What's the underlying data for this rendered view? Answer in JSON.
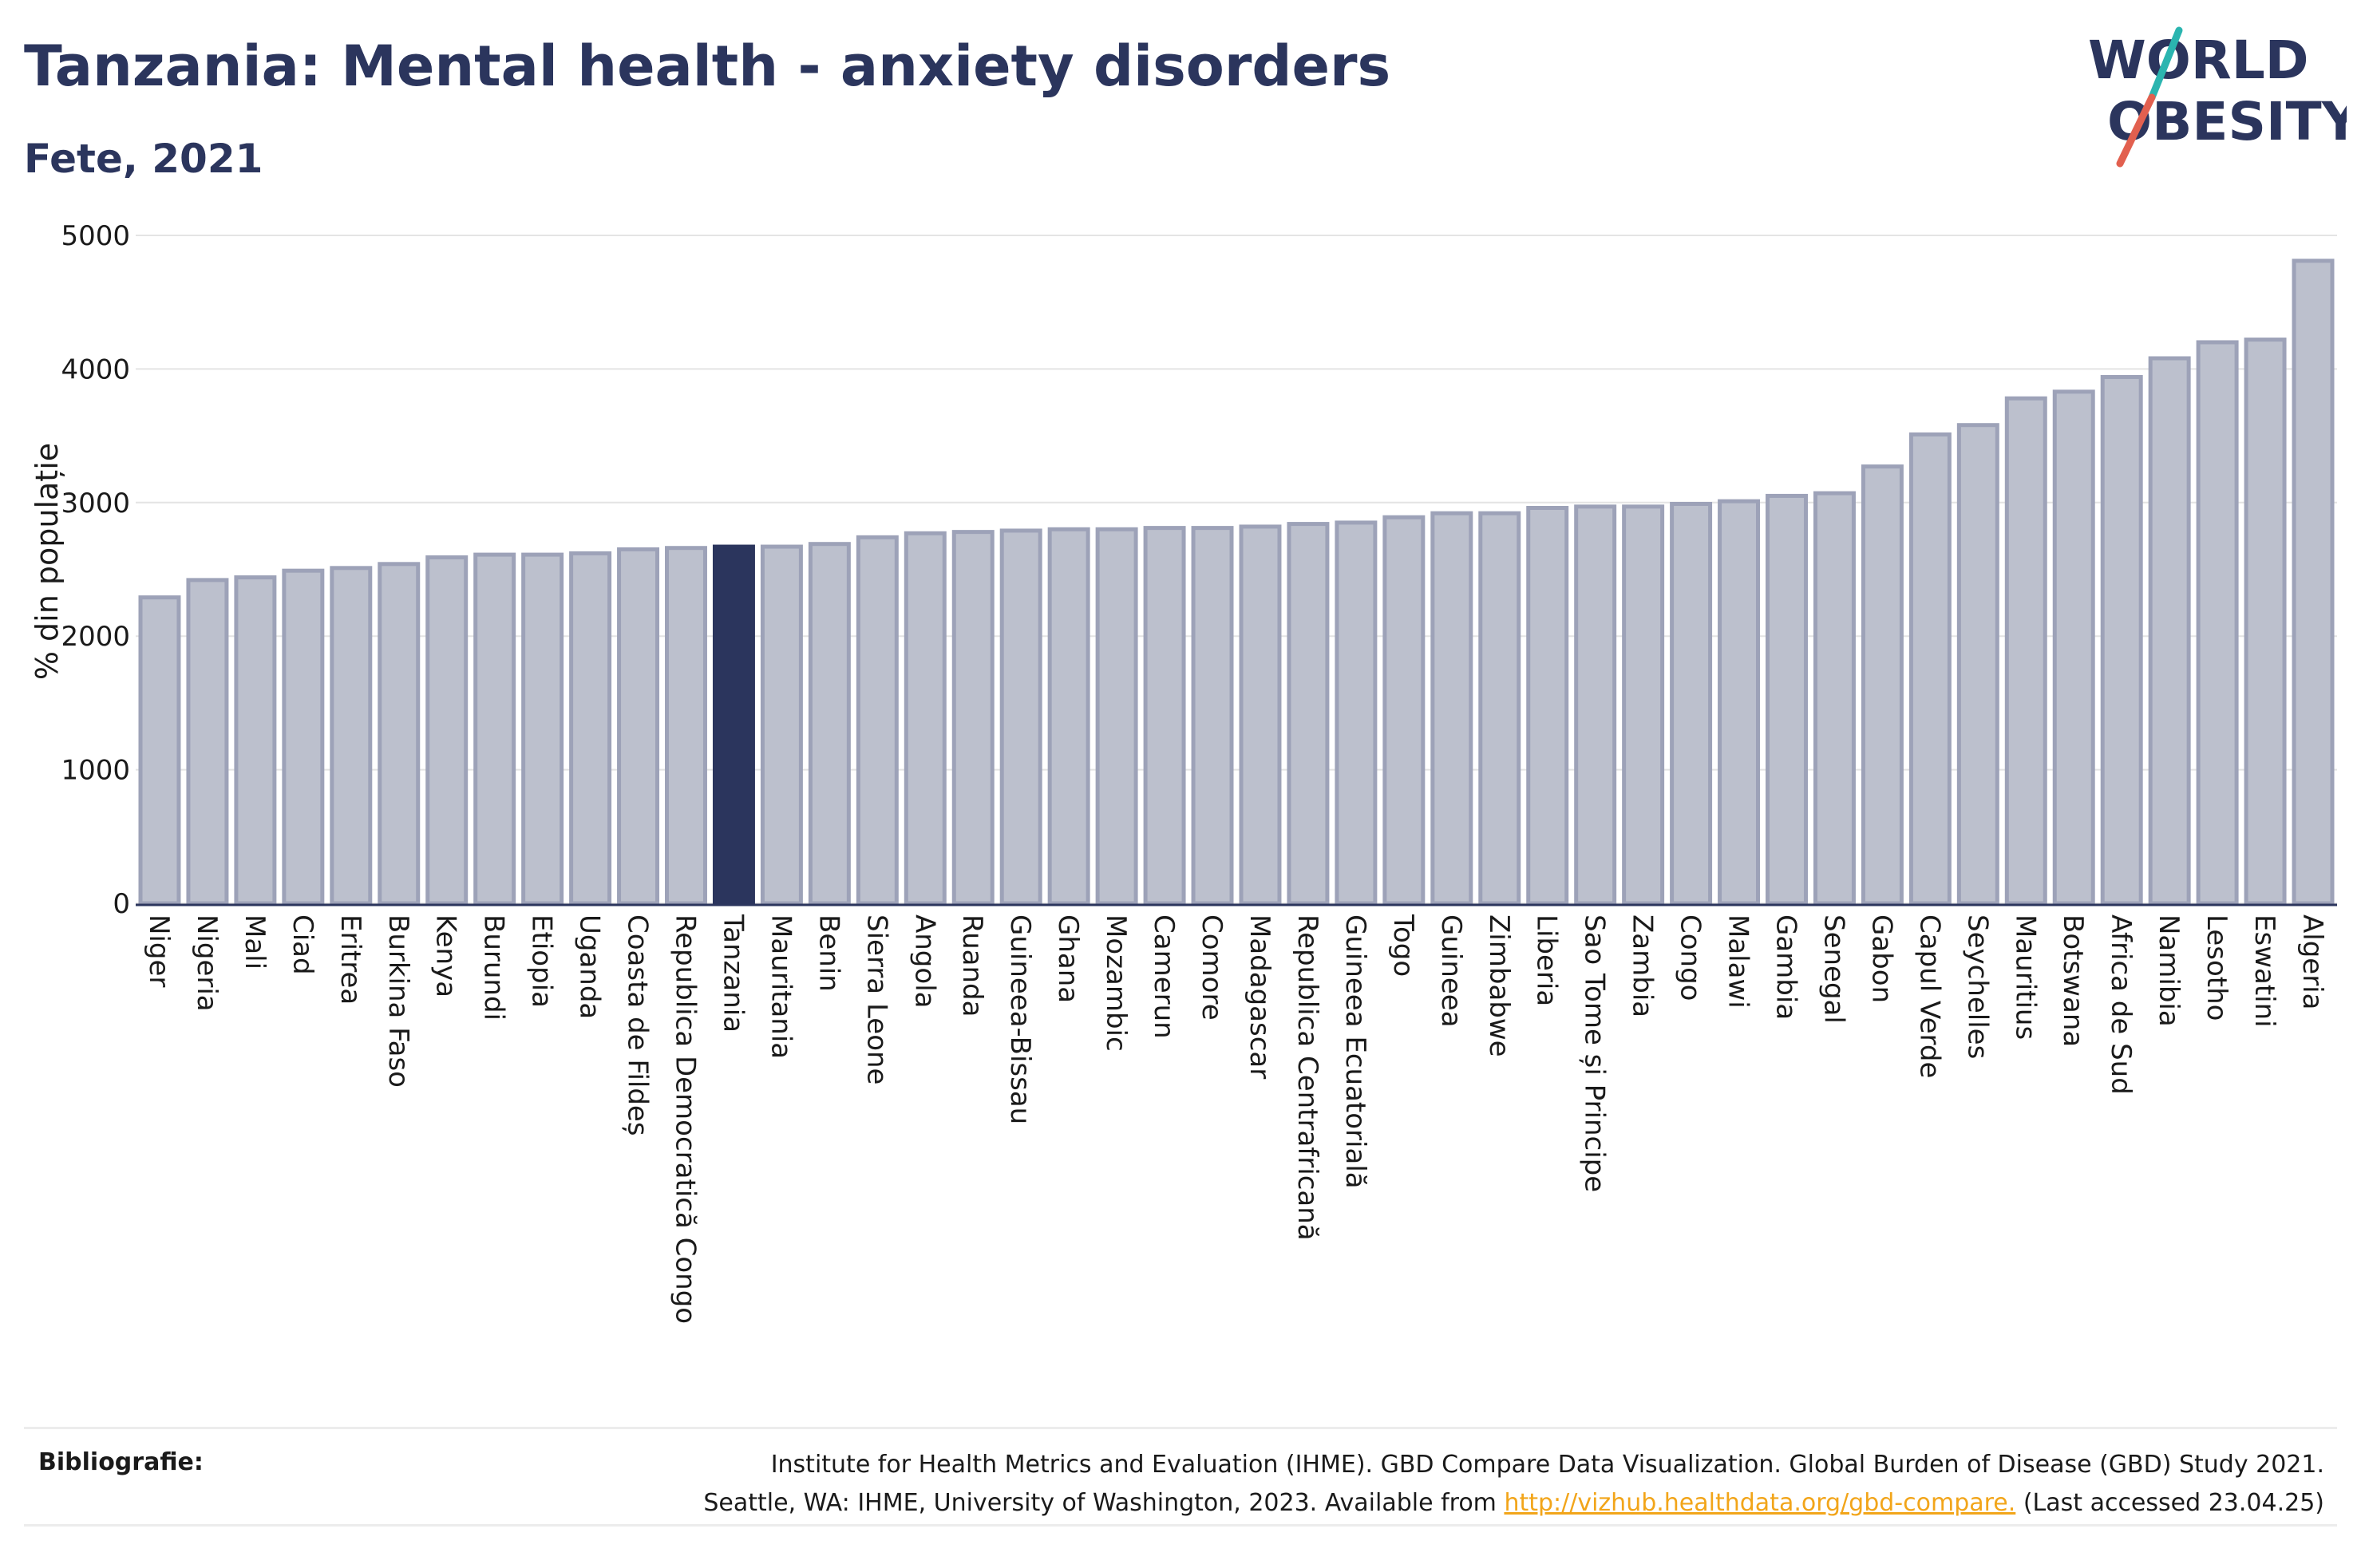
{
  "header": {
    "title": "Tanzania: Mental health - anxiety disorders",
    "subtitle": "Fete, 2021"
  },
  "logo": {
    "line1": "WORLD",
    "line2": "OBESITY",
    "colors": {
      "text": "#2b355d",
      "slash_top": "#2bb5b0",
      "slash_bottom": "#e2604f"
    }
  },
  "colors": {
    "bar": "#bcc0cd",
    "bar_border": "#9da2b8",
    "highlight": "#2b355d",
    "grid": "#e4e4e4",
    "axis": "#2b355d"
  },
  "chart_data": {
    "type": "bar",
    "highlight": "Tanzania",
    "ylabel": "% din populație",
    "ylim": [
      0,
      5000
    ],
    "yticks": [
      0,
      1000,
      2000,
      3000,
      4000,
      5000
    ],
    "grid": true,
    "categories": [
      "Niger",
      "Nigeria",
      "Mali",
      "Ciad",
      "Eritrea",
      "Burkina Faso",
      "Kenya",
      "Burundi",
      "Etiopia",
      "Uganda",
      "Coasta de Fildeș",
      "Republica Democratică Congo",
      "Tanzania",
      "Mauritania",
      "Benin",
      "Sierra Leone",
      "Angola",
      "Ruanda",
      "Guineea-Bissau",
      "Ghana",
      "Mozambic",
      "Camerun",
      "Comore",
      "Madagascar",
      "Republica Centrafricană",
      "Guineea Ecuatorială",
      "Togo",
      "Guineea",
      "Zimbabwe",
      "Liberia",
      "Sao Tome și Principe",
      "Zambia",
      "Congo",
      "Malawi",
      "Gambia",
      "Senegal",
      "Gabon",
      "Capul Verde",
      "Seychelles",
      "Mauritius",
      "Botswana",
      "Africa de Sud",
      "Namibia",
      "Lesotho",
      "Eswatini",
      "Algeria"
    ],
    "values": [
      2290,
      2420,
      2440,
      2490,
      2510,
      2540,
      2590,
      2610,
      2610,
      2620,
      2650,
      2660,
      2670,
      2670,
      2690,
      2740,
      2770,
      2780,
      2790,
      2800,
      2800,
      2810,
      2810,
      2820,
      2840,
      2850,
      2890,
      2920,
      2920,
      2960,
      2970,
      2970,
      2990,
      3010,
      3050,
      3070,
      3270,
      3510,
      3580,
      3780,
      3830,
      3940,
      4080,
      4200,
      4220,
      4810
    ]
  },
  "bibliography": {
    "label": "Bibliografie:",
    "line1": "Institute for Health Metrics and Evaluation (IHME). GBD Compare Data Visualization. Global Burden of Disease (GBD) Study 2021.",
    "line2_prefix": "Seattle, WA: IHME, University of Washington, 2023. Available from ",
    "link": "http://vizhub.healthdata.org/gbd-compare.",
    "line2_suffix": " (Last accessed 23.04.25)"
  }
}
